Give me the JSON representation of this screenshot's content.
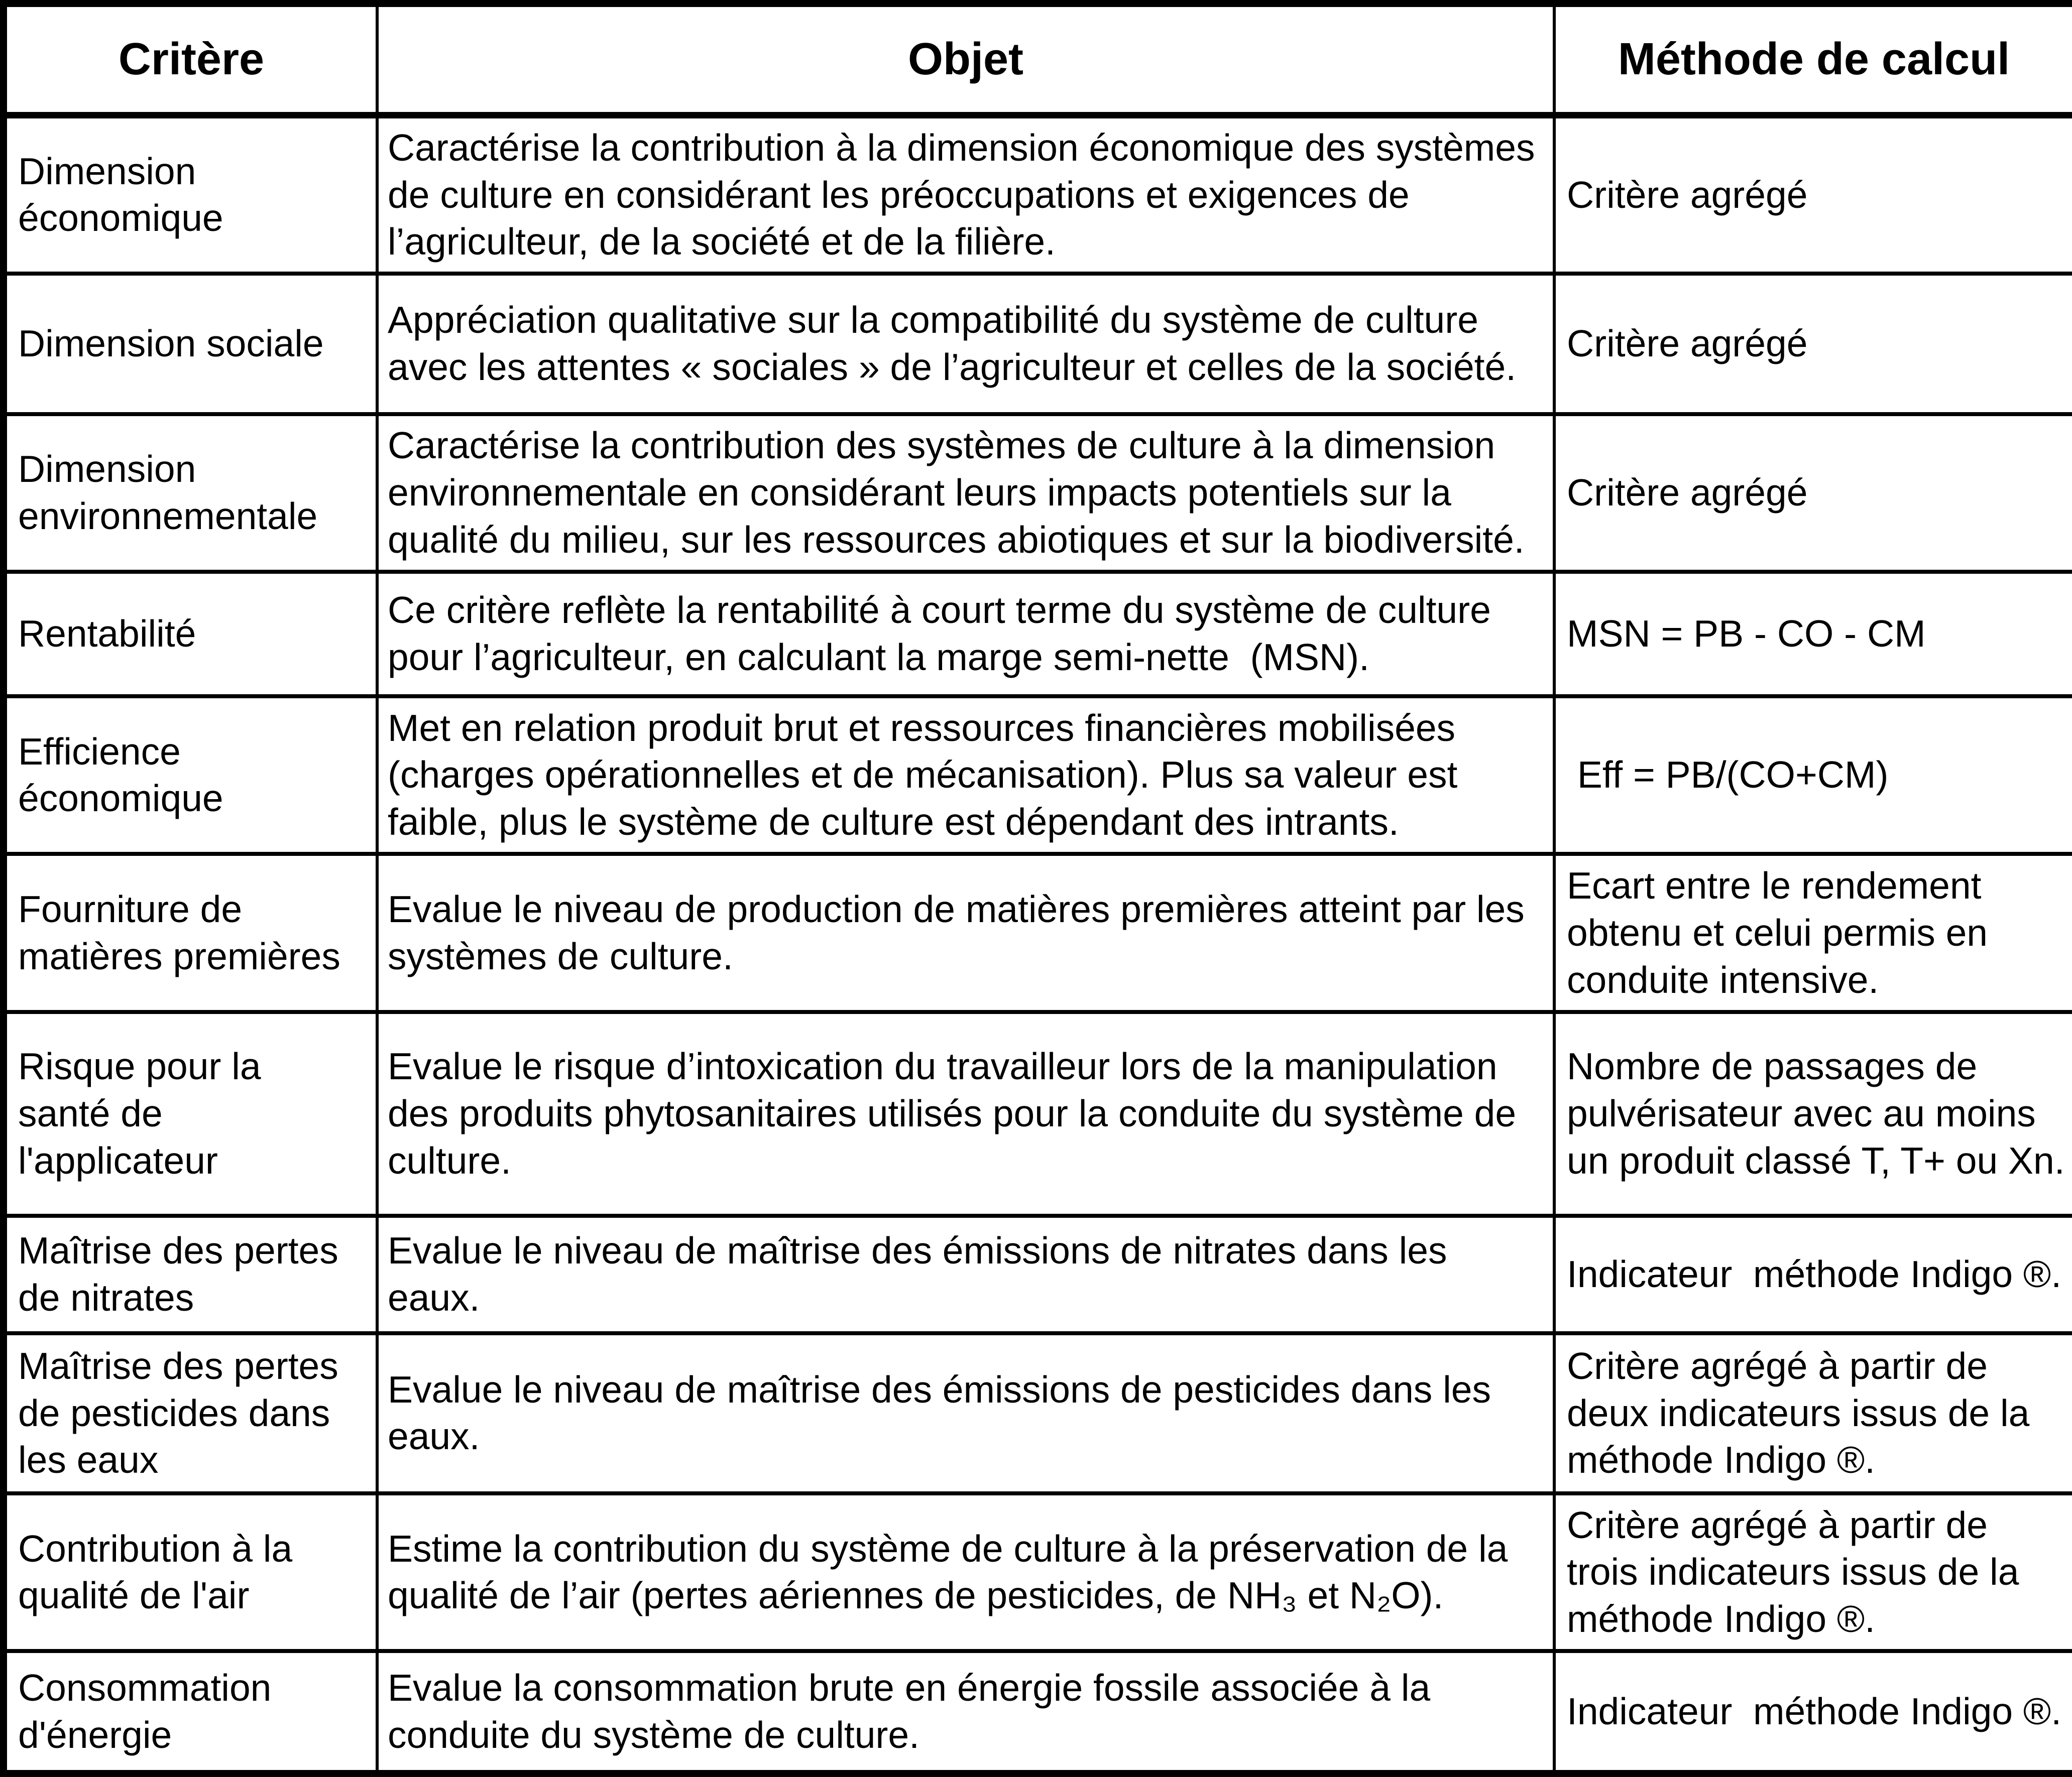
{
  "page": {
    "background_color": "#ffffff",
    "text_color": "#000000",
    "border_color": "#000000"
  },
  "table": {
    "columns": [
      {
        "key": "critere",
        "label": "Critère"
      },
      {
        "key": "objet",
        "label": "Objet"
      },
      {
        "key": "methode",
        "label": "Méthode de calcul"
      }
    ],
    "rows": [
      {
        "critere": "Dimension économique",
        "objet": "Caractérise la contribution à la dimension économique des systèmes de culture en considérant les préoccupations et exigences de l’agriculteur, de la société et de la filière.",
        "methode": "Critère agrégé"
      },
      {
        "critere": "Dimension sociale",
        "objet": "Appréciation qualitative sur la compatibilité du système de culture avec les attentes « sociales » de l’agriculteur et celles de la société.",
        "methode": "Critère agrégé"
      },
      {
        "critere": "Dimension environnementale",
        "objet": "Caractérise la contribution des systèmes de culture à la dimension environnementale en considérant leurs impacts potentiels sur la qualité du milieu, sur les ressources abiotiques et sur la biodiversité.",
        "methode": "Critère agrégé"
      },
      {
        "critere": "Rentabilité",
        "objet": "Ce critère reflète la rentabilité à court terme du système de culture pour l’agriculteur, en calculant la marge semi-nette  (MSN).",
        "methode": "MSN = PB - CO - CM"
      },
      {
        "critere": "Efficience économique",
        "objet": "Met en relation produit brut et ressources financières mobilisées (charges opérationnelles et de mécanisation). Plus sa valeur est faible, plus le système de culture est dépendant des intrants.",
        "methode": " Eff = PB/(CO+CM)"
      },
      {
        "critere": "Fourniture de matières premières",
        "objet": "Evalue le niveau de production de matières premières atteint par les systèmes de culture.",
        "methode": "Ecart entre le rendement obtenu et celui permis en conduite intensive."
      },
      {
        "critere": "Risque pour la santé de l'applicateur",
        "objet": "Evalue le risque d’intoxication du travailleur lors de la manipulation des produits phytosanitaires utilisés pour la conduite du système de culture.",
        "methode": "Nombre de passages de pulvérisateur avec au moins un produit classé T, T+ ou Xn."
      },
      {
        "critere": "Maîtrise des pertes de nitrates",
        "objet": "Evalue le niveau de maîtrise des émissions de nitrates dans les eaux.",
        "methode": "Indicateur  méthode Indigo ®."
      },
      {
        "critere": "Maîtrise des pertes de pesticides dans les eaux",
        "objet": "Evalue le niveau de maîtrise des émissions de pesticides dans les eaux.",
        "methode": "Critère agrégé à partir de deux indicateurs issus de la méthode Indigo ®."
      },
      {
        "critere": "Contribution à la qualité de l'air",
        "objet": "Estime la contribution du système de culture à la préservation de la qualité de l’air (pertes aériennes de pesticides, de NH₃ et N₂O).",
        "methode": "Critère agrégé à partir de trois indicateurs issus de la méthode Indigo ®."
      },
      {
        "critere": "Consommation d'énergie",
        "objet": "Evalue la consommation brute en énergie fossile associée à la conduite du système de culture.",
        "methode": "Indicateur  méthode Indigo ®."
      }
    ]
  }
}
